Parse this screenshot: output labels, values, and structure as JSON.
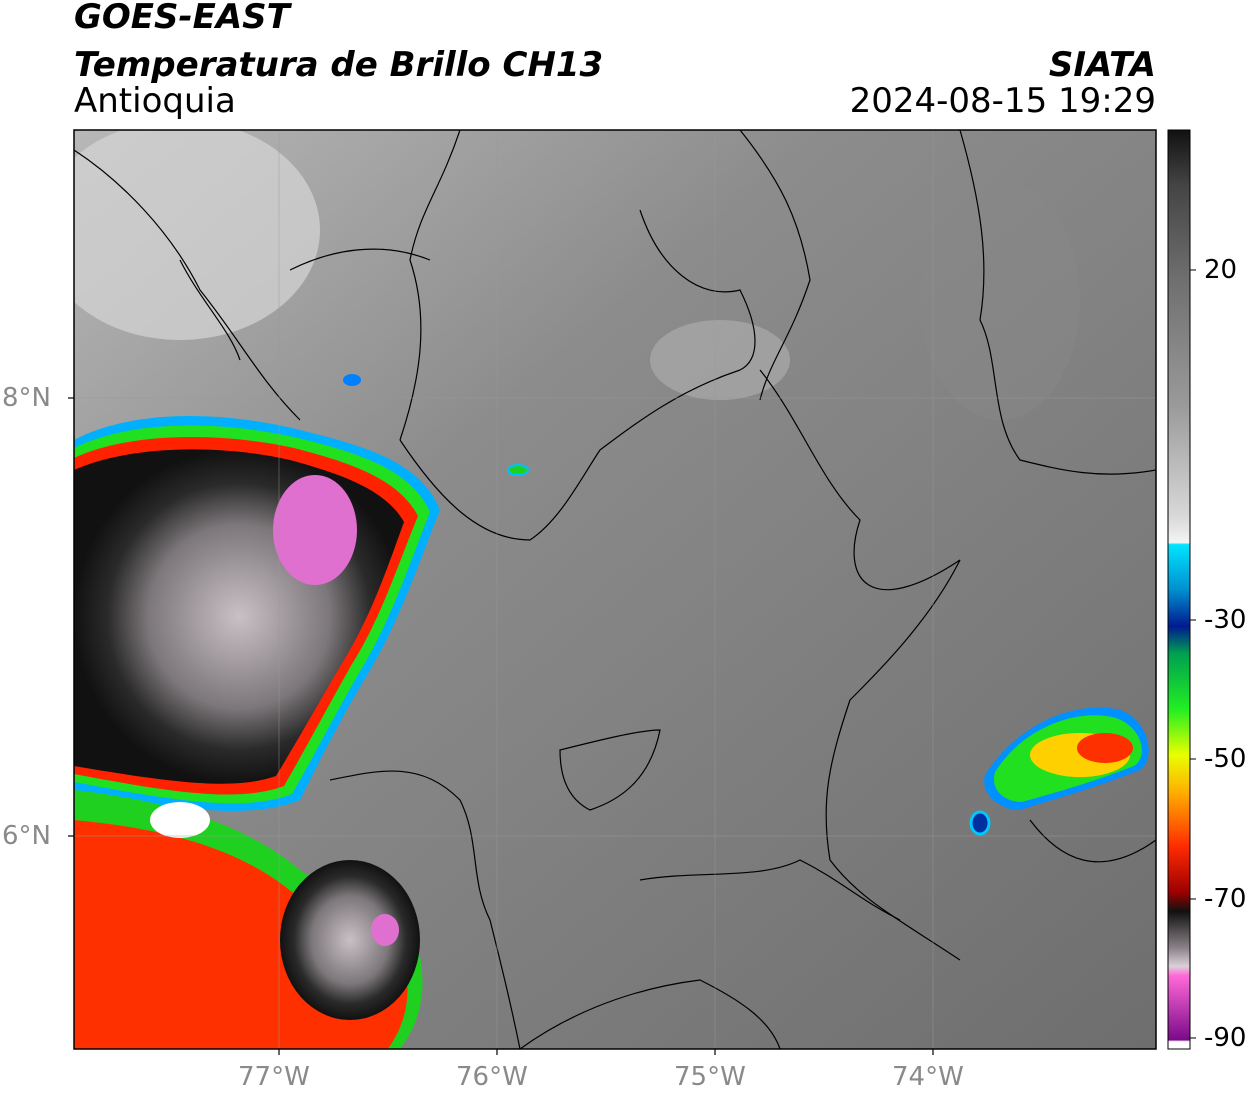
{
  "header": {
    "satellite": "GOES-EAST",
    "product": "Temperatura de Brillo CH13",
    "region": "Antioquia",
    "organization": "SIATA",
    "datetime": "2024-08-15 19:29"
  },
  "map": {
    "lat_labels": [
      "8°N",
      "6°N"
    ],
    "lon_labels": [
      "77°W",
      "76°W",
      "75°W",
      "74°W"
    ],
    "gridlines": true
  },
  "colorbar": {
    "tick_labels": [
      "20",
      "-30",
      "-50",
      "-70",
      "-90"
    ]
  }
}
